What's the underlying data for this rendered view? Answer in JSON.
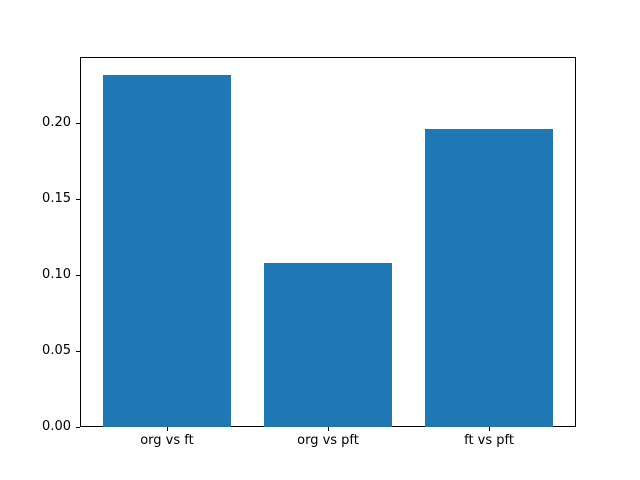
{
  "chart_data": {
    "type": "bar",
    "title": "",
    "xlabel": "",
    "ylabel": "",
    "categories": [
      "org vs ft",
      "org vs pft",
      "ft vs pft"
    ],
    "values": [
      0.232,
      0.108,
      0.196
    ],
    "bar_color": "#1f77b4",
    "background_color": "#ffffff",
    "spine_color": "#000000",
    "ylim": [
      0,
      0.2436
    ],
    "yticks": [
      0.0,
      0.05,
      0.1,
      0.15,
      0.2
    ],
    "ytick_labels": [
      "0.00",
      "0.05",
      "0.10",
      "0.15",
      "0.20"
    ],
    "bar_width_fraction": 0.8,
    "grid": false,
    "legend": null
  }
}
